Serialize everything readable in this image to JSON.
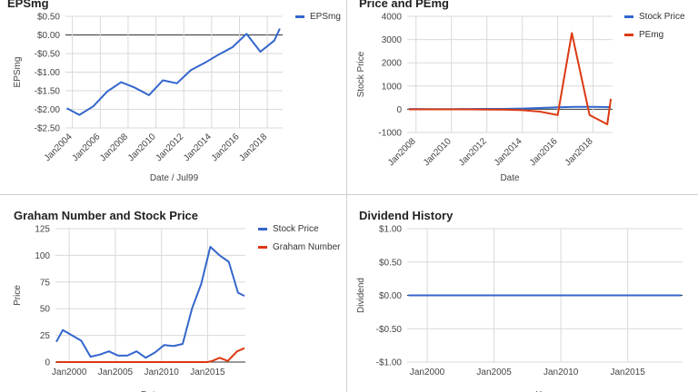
{
  "chart_data": [
    {
      "type": "line",
      "title": "EPSmg",
      "xlabel": "Date / Jul99",
      "ylabel": "EPSmg",
      "ylim": [
        -2.5,
        0.5
      ],
      "xlim": [
        2003.5,
        2019.1
      ],
      "y_ticks": [
        0.5,
        0,
        -0.5,
        -1,
        -1.5,
        -2,
        -2.5
      ],
      "y_tick_labels": [
        "$0.50",
        "$0.00",
        "-$0.50",
        "-$1.00",
        "-$1.50",
        "-$2.00",
        "-$2.50"
      ],
      "x_ticks": [
        2004,
        2006,
        2008,
        2010,
        2012,
        2014,
        2016,
        2018
      ],
      "x_tick_labels": [
        "Jan2004",
        "Jan2006",
        "Jan2008",
        "Jan2010",
        "Jan2012",
        "Jan2014",
        "Jan2016",
        "Jan2018"
      ],
      "legend": "top-right",
      "series": [
        {
          "name": "EPSmg",
          "color": "#3366cc",
          "x": [
            2003.6,
            2004.5,
            2005.5,
            2006.5,
            2007.5,
            2008.5,
            2009.5,
            2010.5,
            2011.5,
            2012.5,
            2013.5,
            2014.5,
            2015.5,
            2016.5,
            2017.5,
            2018.5,
            2018.9
          ],
          "y": [
            -1.97,
            -2.15,
            -1.92,
            -1.52,
            -1.27,
            -1.42,
            -1.62,
            -1.22,
            -1.3,
            -0.95,
            -0.75,
            -0.53,
            -0.33,
            0.03,
            -0.45,
            -0.15,
            0.17
          ]
        }
      ]
    },
    {
      "type": "line",
      "title": "Price and PEmg",
      "xlabel": "Date",
      "ylabel": "Stock Price",
      "ylim": [
        -1000,
        4000
      ],
      "xlim": [
        2007.5,
        2019.1
      ],
      "y_ticks": [
        4000,
        3000,
        2000,
        1000,
        0,
        -1000
      ],
      "y_tick_labels": [
        "4000",
        "3000",
        "2000",
        "1000",
        "0",
        "-1000"
      ],
      "x_ticks": [
        2008,
        2010,
        2012,
        2014,
        2016,
        2018
      ],
      "x_tick_labels": [
        "Jan2008",
        "Jan2010",
        "Jan2012",
        "Jan2014",
        "Jan2016",
        "Jan2018"
      ],
      "legend": "top-right",
      "series": [
        {
          "name": "Stock Price",
          "color": "#3366cc",
          "x": [
            2007.6,
            2009,
            2010,
            2011,
            2012,
            2013,
            2014,
            2015,
            2016,
            2017,
            2018,
            2019
          ],
          "y": [
            10,
            5,
            5,
            10,
            15,
            15,
            30,
            55,
            85,
            105,
            100,
            95
          ]
        },
        {
          "name": "PEmg",
          "color": "#dc3912",
          "x": [
            2007.6,
            2009,
            2010,
            2011,
            2012,
            2013,
            2014,
            2015,
            2016,
            2016.8,
            2017.8,
            2018.8,
            2019
          ],
          "y": [
            -5,
            -5,
            -5,
            -5,
            -10,
            -20,
            -40,
            -100,
            -250,
            3280,
            -250,
            -650,
            450
          ]
        }
      ]
    },
    {
      "type": "line",
      "title": "Graham Number and Stock Price",
      "xlabel": "Date",
      "ylabel": "Price",
      "ylim": [
        0,
        125
      ],
      "xlim": [
        1998.5,
        2019.1
      ],
      "y_ticks": [
        125,
        100,
        75,
        50,
        25,
        0
      ],
      "y_tick_labels": [
        "125",
        "100",
        "75",
        "50",
        "25",
        "0"
      ],
      "x_ticks": [
        2000,
        2005,
        2010,
        2015
      ],
      "x_tick_labels": [
        "Jan2000",
        "Jan2005",
        "Jan2010",
        "Jan2015"
      ],
      "legend": "top-right",
      "series": [
        {
          "name": "Stock Price",
          "color": "#3366cc",
          "x": [
            1998.6,
            1999.3,
            2000.3,
            2001.3,
            2002.3,
            2003.3,
            2004.3,
            2005.3,
            2006.3,
            2007.3,
            2008.3,
            2009.3,
            2010.3,
            2011.3,
            2012.3,
            2013.3,
            2014.3,
            2015.3,
            2016.3,
            2017.3,
            2018.3,
            2019.0
          ],
          "y": [
            19,
            30,
            25,
            20,
            5,
            7,
            10,
            6,
            6,
            10,
            4,
            9,
            16,
            15,
            17,
            50,
            73,
            108,
            100,
            94,
            65,
            62
          ]
        },
        {
          "name": "Graham Number",
          "color": "#dc3912",
          "x": [
            1998.6,
            2000,
            2005,
            2010,
            2015,
            2015.5,
            2016.3,
            2017.2,
            2018.2,
            2019.0
          ],
          "y": [
            0,
            0,
            0,
            0,
            0,
            1,
            4,
            1,
            10,
            13
          ]
        }
      ]
    },
    {
      "type": "line",
      "title": "Dividend History",
      "xlabel": "Year",
      "ylabel": "Dividend",
      "ylim": [
        -1,
        1
      ],
      "xlim": [
        1998.5,
        2019.1
      ],
      "y_ticks": [
        1,
        0.5,
        0,
        -0.5,
        -1
      ],
      "y_tick_labels": [
        "$1.00",
        "$0.50",
        "$0.00",
        "-$0.50",
        "-$1.00"
      ],
      "x_ticks": [
        2000,
        2005,
        2010,
        2015
      ],
      "x_tick_labels": [
        "Jan2000",
        "Jan2005",
        "Jan2010",
        "Jan2015"
      ],
      "legend": "none",
      "series": [
        {
          "name": "Dividend",
          "color": "#3366cc",
          "x": [
            1998.6,
            2019.0
          ],
          "y": [
            0,
            0
          ]
        }
      ]
    }
  ]
}
